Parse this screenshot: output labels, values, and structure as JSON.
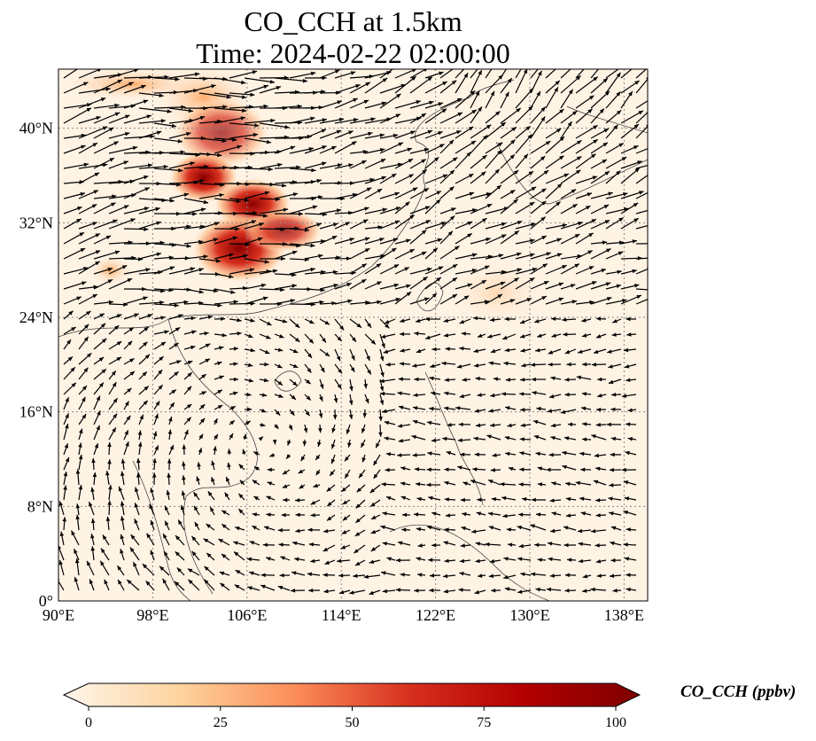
{
  "title": {
    "line1": "CO_CCH at 1.5km",
    "line2": "Time: 2024-02-22 02:00:00"
  },
  "map": {
    "lon_range": [
      90,
      140
    ],
    "lat_range": [
      0,
      45
    ],
    "lon_ticks": [
      {
        "v": 90,
        "label": "90°E"
      },
      {
        "v": 98,
        "label": "98°E"
      },
      {
        "v": 106,
        "label": "106°E"
      },
      {
        "v": 114,
        "label": "114°E"
      },
      {
        "v": 122,
        "label": "122°E"
      },
      {
        "v": 130,
        "label": "130°E"
      },
      {
        "v": 138,
        "label": "138°E"
      }
    ],
    "lat_ticks": [
      {
        "v": 0,
        "label": "0°"
      },
      {
        "v": 8,
        "label": "8°N"
      },
      {
        "v": 16,
        "label": "16°N"
      },
      {
        "v": 24,
        "label": "24°N"
      },
      {
        "v": 32,
        "label": "32°N"
      },
      {
        "v": 40,
        "label": "40°N"
      }
    ]
  },
  "colorbar": {
    "label": "CO_CCH (ppbv)",
    "range": [
      0,
      100
    ],
    "ticks": [
      {
        "v": 0,
        "label": "0"
      },
      {
        "v": 25,
        "label": "25"
      },
      {
        "v": 50,
        "label": "50"
      },
      {
        "v": 75,
        "label": "75"
      },
      {
        "v": 100,
        "label": "100"
      }
    ],
    "colors": [
      "#fff5eb",
      "#fdd49e",
      "#fc8d59",
      "#d7301f",
      "#b30000",
      "#7f0000"
    ]
  }
}
